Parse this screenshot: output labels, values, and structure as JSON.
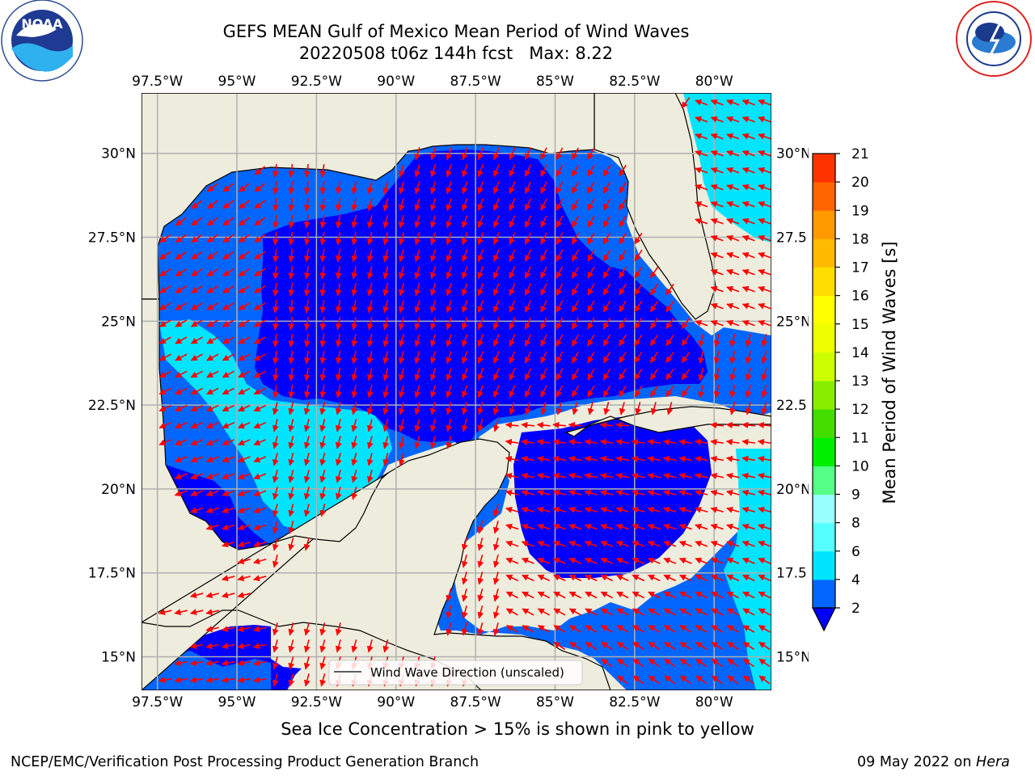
{
  "title_line1": "GEFS MEAN Gulf of Mexico Mean Period of Wind Waves",
  "title_line2": "20220508 t06z 144h fcst   Max: 8.22",
  "lon_ticks": [
    "97.5°W",
    "95°W",
    "92.5°W",
    "90°W",
    "87.5°W",
    "85°W",
    "82.5°W",
    "80°W"
  ],
  "lat_ticks": [
    "30°N",
    "27.5°N",
    "25°N",
    "22.5°N",
    "20°N",
    "17.5°N",
    "15°N"
  ],
  "lat_ticks_right": [
    "30°N",
    "27.5",
    "25°N",
    "22.5",
    "20°N",
    "17.5",
    "15°N"
  ],
  "legend_label": "Wind Wave Direction (unscaled)",
  "sea_ice_note": "Sea Ice Concentration > 15% is shown in pink to yellow",
  "footer_left": "NCEP/EMC/Verification Post Processing Product Generation Branch",
  "footer_date": "09 May 2022 on ",
  "footer_host": "Hera",
  "colorbar": {
    "label": "Mean Period of Wind Waves [s]",
    "tick_labels": [
      "2",
      "4",
      "6",
      "8",
      "9",
      "10",
      "11",
      "12",
      "13",
      "14",
      "15",
      "16",
      "17",
      "18",
      "19",
      "20",
      "21"
    ],
    "levels": [
      2,
      4,
      6,
      8,
      9,
      10,
      11,
      12,
      13,
      14,
      15,
      16,
      17,
      18,
      19,
      20,
      21
    ],
    "colors": [
      "#0066ff",
      "#00e5ff",
      "#55ffff",
      "#99ffff",
      "#55ff88",
      "#00ee00",
      "#44dd00",
      "#88ee00",
      "#ccff00",
      "#eeff00",
      "#ffff00",
      "#ffdd00",
      "#ffbb00",
      "#ff9900",
      "#ff6600",
      "#ff3300"
    ],
    "extend_below_color": "#0000ff"
  },
  "chart_data": {
    "type": "heatmap",
    "title": "GEFS MEAN Gulf of Mexico Mean Period of Wind Waves",
    "subtitle": "20220508 t06z 144h fcst   Max: 8.22",
    "x_range_deg": [
      -98.0,
      -78.2
    ],
    "y_range_deg": [
      14.0,
      31.8
    ],
    "x_ticks": [
      -97.5,
      -95,
      -92.5,
      -90,
      -87.5,
      -85,
      -82.5,
      -80
    ],
    "y_ticks": [
      15,
      17.5,
      20,
      22.5,
      25,
      27.5,
      30
    ],
    "grid": true,
    "legend_placement": "lower center",
    "max_value": 8.22,
    "units": "s",
    "colors": {
      "land": "#eeecdc",
      "below_2s": "#0000ff",
      "2_to_4s": "#0066ff",
      "4_to_6s": "#00e5ff",
      "arrows": "#ff0000",
      "grid": "#b0b0b0"
    }
  }
}
